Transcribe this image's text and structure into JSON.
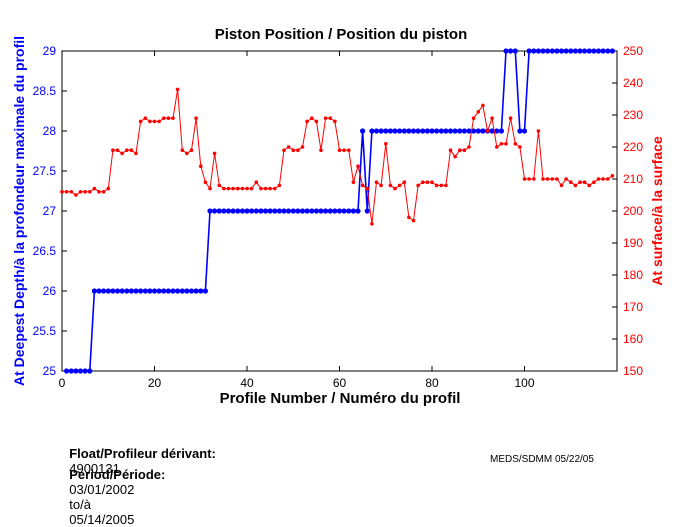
{
  "chart_data": {
    "type": "line",
    "title": "Piston Position / Position du piston",
    "xlabel": "Profile Number / Numéro du profil",
    "ylabel_left": "At Deepest Depth/à la profondeur maximale du profil",
    "ylabel_right": "At surface/à la surface",
    "xlim": [
      0,
      120
    ],
    "ylim_left": [
      25,
      29
    ],
    "ylim_right": [
      150,
      250
    ],
    "x_ticks": [
      0,
      20,
      40,
      60,
      80,
      100
    ],
    "y_ticks_left": [
      "25",
      "25.5",
      "26",
      "26.5",
      "27",
      "27.5",
      "28",
      "28.5",
      "29"
    ],
    "y_ticks_right": [
      "150",
      "160",
      "170",
      "180",
      "190",
      "200",
      "210",
      "220",
      "230",
      "240",
      "250"
    ],
    "grid": false,
    "series": [
      {
        "color": "#0000ff",
        "axis": "left",
        "marker": "circle",
        "x": [
          1,
          2,
          3,
          4,
          5,
          6,
          7,
          8,
          9,
          10,
          11,
          12,
          13,
          14,
          15,
          16,
          17,
          18,
          19,
          20,
          21,
          22,
          23,
          24,
          25,
          26,
          27,
          28,
          29,
          30,
          31,
          32,
          33,
          34,
          35,
          36,
          37,
          38,
          39,
          40,
          41,
          42,
          43,
          44,
          45,
          46,
          47,
          48,
          49,
          50,
          51,
          52,
          53,
          54,
          55,
          56,
          57,
          58,
          59,
          60,
          61,
          62,
          63,
          64,
          65,
          66,
          67,
          68,
          69,
          70,
          71,
          72,
          73,
          74,
          75,
          76,
          77,
          78,
          79,
          80,
          81,
          82,
          83,
          84,
          85,
          86,
          87,
          88,
          89,
          90,
          91,
          92,
          93,
          94,
          95,
          96,
          97,
          98,
          99,
          100,
          101,
          102,
          103,
          104,
          105,
          106,
          107,
          108,
          109,
          110,
          111,
          112,
          113,
          114,
          115,
          116,
          117,
          118,
          119
        ],
        "values": [
          25,
          25,
          25,
          25,
          25,
          25,
          26,
          26,
          26,
          26,
          26,
          26,
          26,
          26,
          26,
          26,
          26,
          26,
          26,
          26,
          26,
          26,
          26,
          26,
          26,
          26,
          26,
          26,
          26,
          26,
          26,
          27,
          27,
          27,
          27,
          27,
          27,
          27,
          27,
          27,
          27,
          27,
          27,
          27,
          27,
          27,
          27,
          27,
          27,
          27,
          27,
          27,
          27,
          27,
          27,
          27,
          27,
          27,
          27,
          27,
          27,
          27,
          27,
          27,
          28,
          27,
          28,
          28,
          28,
          28,
          28,
          28,
          28,
          28,
          28,
          28,
          28,
          28,
          28,
          28,
          28,
          28,
          28,
          28,
          28,
          28,
          28,
          28,
          28,
          28,
          28,
          28,
          28,
          28,
          28,
          29,
          29,
          29,
          28,
          28,
          29,
          29,
          29,
          29,
          29,
          29,
          29,
          29,
          29,
          29,
          29,
          29,
          29,
          29,
          29,
          29,
          29,
          29,
          29
        ]
      },
      {
        "color": "#ff0000",
        "axis": "right",
        "marker": "dot",
        "x": [
          0,
          1,
          2,
          3,
          4,
          5,
          6,
          7,
          8,
          9,
          10,
          11,
          12,
          13,
          14,
          15,
          16,
          17,
          18,
          19,
          20,
          21,
          22,
          23,
          24,
          25,
          26,
          27,
          28,
          29,
          30,
          31,
          32,
          33,
          34,
          35,
          36,
          37,
          38,
          39,
          40,
          41,
          42,
          43,
          44,
          45,
          46,
          47,
          48,
          49,
          50,
          51,
          52,
          53,
          54,
          55,
          56,
          57,
          58,
          59,
          60,
          61,
          62,
          63,
          64,
          65,
          66,
          67,
          68,
          69,
          70,
          71,
          72,
          73,
          74,
          75,
          76,
          77,
          78,
          79,
          80,
          81,
          82,
          83,
          84,
          85,
          86,
          87,
          88,
          89,
          90,
          91,
          92,
          93,
          94,
          95,
          96,
          97,
          98,
          99,
          100,
          101,
          102,
          103,
          104,
          105,
          106,
          107,
          108,
          109,
          110,
          111,
          112,
          113,
          114,
          115,
          116,
          117,
          118,
          119
        ],
        "values": [
          206,
          206,
          206,
          205,
          206,
          206,
          206,
          207,
          206,
          206,
          207,
          219,
          219,
          218,
          219,
          219,
          218,
          228,
          229,
          228,
          228,
          228,
          229,
          229,
          229,
          238,
          219,
          218,
          219,
          229,
          214,
          209,
          207,
          218,
          208,
          207,
          207,
          207,
          207,
          207,
          207,
          207,
          209,
          207,
          207,
          207,
          207,
          208,
          219,
          220,
          219,
          219,
          220,
          228,
          229,
          228,
          219,
          229,
          229,
          228,
          219,
          219,
          219,
          209,
          214,
          208,
          207,
          196,
          209,
          208,
          221,
          208,
          207,
          208,
          209,
          198,
          197,
          208,
          209,
          209,
          209,
          208,
          208,
          208,
          219,
          217,
          219,
          219,
          220,
          229,
          231,
          233,
          225,
          229,
          220,
          221,
          221,
          229,
          221,
          220,
          210,
          210,
          210,
          225,
          210,
          210,
          210,
          210,
          208,
          210,
          209,
          208,
          209,
          209,
          208,
          209,
          210,
          210,
          210,
          211
        ]
      }
    ]
  },
  "info": {
    "float_label": "Float/Profileur dérivant:",
    "float_value": "4900131",
    "period_label": "Period/Période:",
    "period_start": "03/01/2002",
    "period_sep": "to/à",
    "period_end": "05/14/2005",
    "stamp": "MEDS/SDMM  05/22/05"
  }
}
